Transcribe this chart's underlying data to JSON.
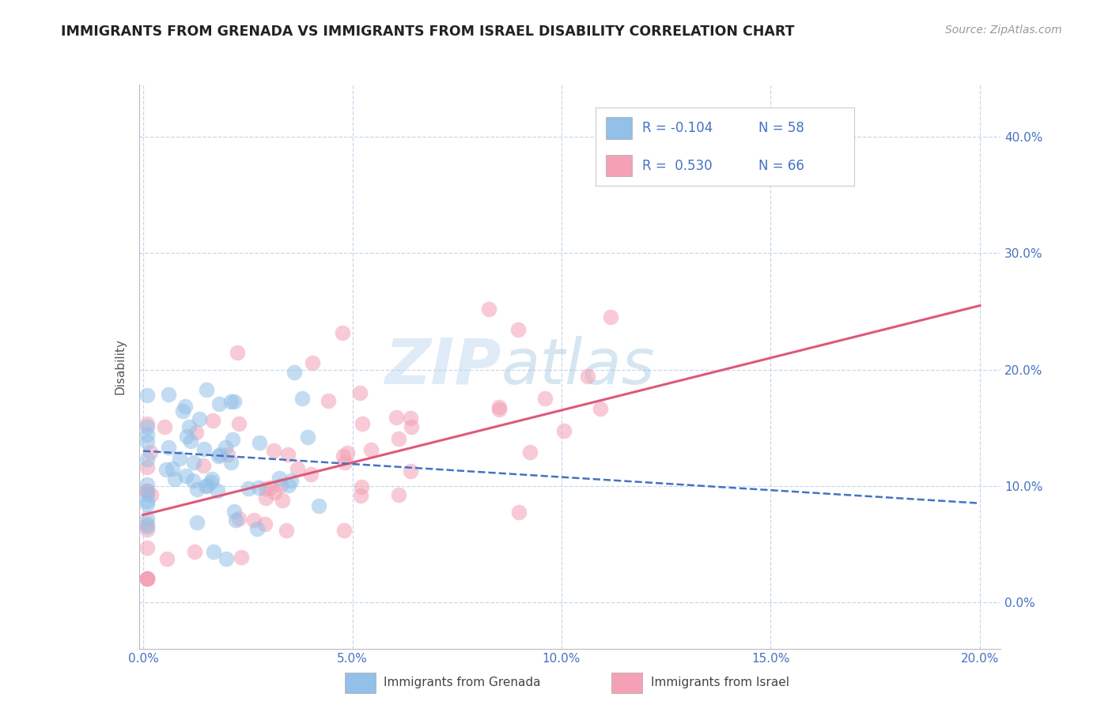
{
  "title": "IMMIGRANTS FROM GRENADA VS IMMIGRANTS FROM ISRAEL DISABILITY CORRELATION CHART",
  "source": "Source: ZipAtlas.com",
  "ylabel": "Disability",
  "xlim": [
    -0.001,
    0.205
  ],
  "ylim": [
    -0.04,
    0.445
  ],
  "yticks": [
    0.0,
    0.1,
    0.2,
    0.3,
    0.4
  ],
  "xticks": [
    0.0,
    0.05,
    0.1,
    0.15,
    0.2
  ],
  "xtick_labels": [
    "0.0%",
    "5.0%",
    "10.0%",
    "15.0%",
    "20.0%"
  ],
  "ytick_labels": [
    "0.0%",
    "10.0%",
    "20.0%",
    "30.0%",
    "40.0%"
  ],
  "grenada_color": "#92c0e8",
  "israel_color": "#f4a0b5",
  "grenada_line_color": "#4472c4",
  "israel_line_color": "#e05878",
  "grenada_R": -0.104,
  "grenada_N": 58,
  "israel_R": 0.53,
  "israel_N": 66,
  "watermark": "ZIPatlas",
  "background_color": "#ffffff",
  "grid_color": "#c8d8ec",
  "title_color": "#222222",
  "axis_label_color": "#555555",
  "tick_label_color": "#4472c4"
}
